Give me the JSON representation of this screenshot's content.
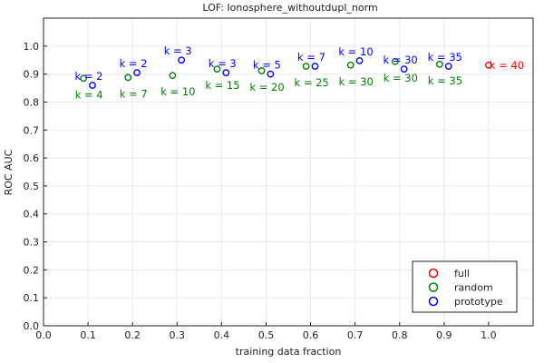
{
  "chart_data": {
    "type": "scatter",
    "title": "LOF: Ionosphere_withoutdupl_norm",
    "xlabel": "training data fraction",
    "ylabel": "ROC AUC",
    "xlim": [
      0.0,
      1.1
    ],
    "ylim": [
      0.0,
      1.1
    ],
    "xticks": [
      "0.0",
      "0.1",
      "0.2",
      "0.3",
      "0.4",
      "0.5",
      "0.6",
      "0.7",
      "0.8",
      "0.9",
      "1.0"
    ],
    "yticks": [
      "0.0",
      "0.1",
      "0.2",
      "0.3",
      "0.4",
      "0.5",
      "0.6",
      "0.7",
      "0.8",
      "0.9",
      "1.0"
    ],
    "grid": true,
    "legend_position": "bottom-right",
    "colors": {
      "full": "#ff0000",
      "random": "#008000",
      "prototype": "#0000ff"
    },
    "series": [
      {
        "name": "full",
        "points": [
          {
            "x": 1.0,
            "y": 0.932,
            "label": "k = 40"
          }
        ]
      },
      {
        "name": "random",
        "points": [
          {
            "x": 0.09,
            "y": 0.885,
            "label": "k = 4"
          },
          {
            "x": 0.19,
            "y": 0.888,
            "label": "k = 7"
          },
          {
            "x": 0.29,
            "y": 0.895,
            "label": "k = 10"
          },
          {
            "x": 0.39,
            "y": 0.918,
            "label": "k = 15"
          },
          {
            "x": 0.49,
            "y": 0.912,
            "label": "k = 20"
          },
          {
            "x": 0.59,
            "y": 0.928,
            "label": "k = 25"
          },
          {
            "x": 0.69,
            "y": 0.932,
            "label": "k = 30"
          },
          {
            "x": 0.79,
            "y": 0.945,
            "label": "k = 30"
          },
          {
            "x": 0.89,
            "y": 0.935,
            "label": "k = 35"
          }
        ]
      },
      {
        "name": "prototype",
        "points": [
          {
            "x": 0.11,
            "y": 0.86,
            "label": "k = 2"
          },
          {
            "x": 0.21,
            "y": 0.905,
            "label": "k = 2"
          },
          {
            "x": 0.31,
            "y": 0.95,
            "label": "k = 3"
          },
          {
            "x": 0.41,
            "y": 0.905,
            "label": "k = 3"
          },
          {
            "x": 0.51,
            "y": 0.9,
            "label": "k = 5"
          },
          {
            "x": 0.61,
            "y": 0.928,
            "label": "k = 7"
          },
          {
            "x": 0.71,
            "y": 0.948,
            "label": "k = 10"
          },
          {
            "x": 0.81,
            "y": 0.918,
            "label": "k = 30"
          },
          {
            "x": 0.91,
            "y": 0.928,
            "label": "k = 35"
          }
        ]
      }
    ]
  }
}
